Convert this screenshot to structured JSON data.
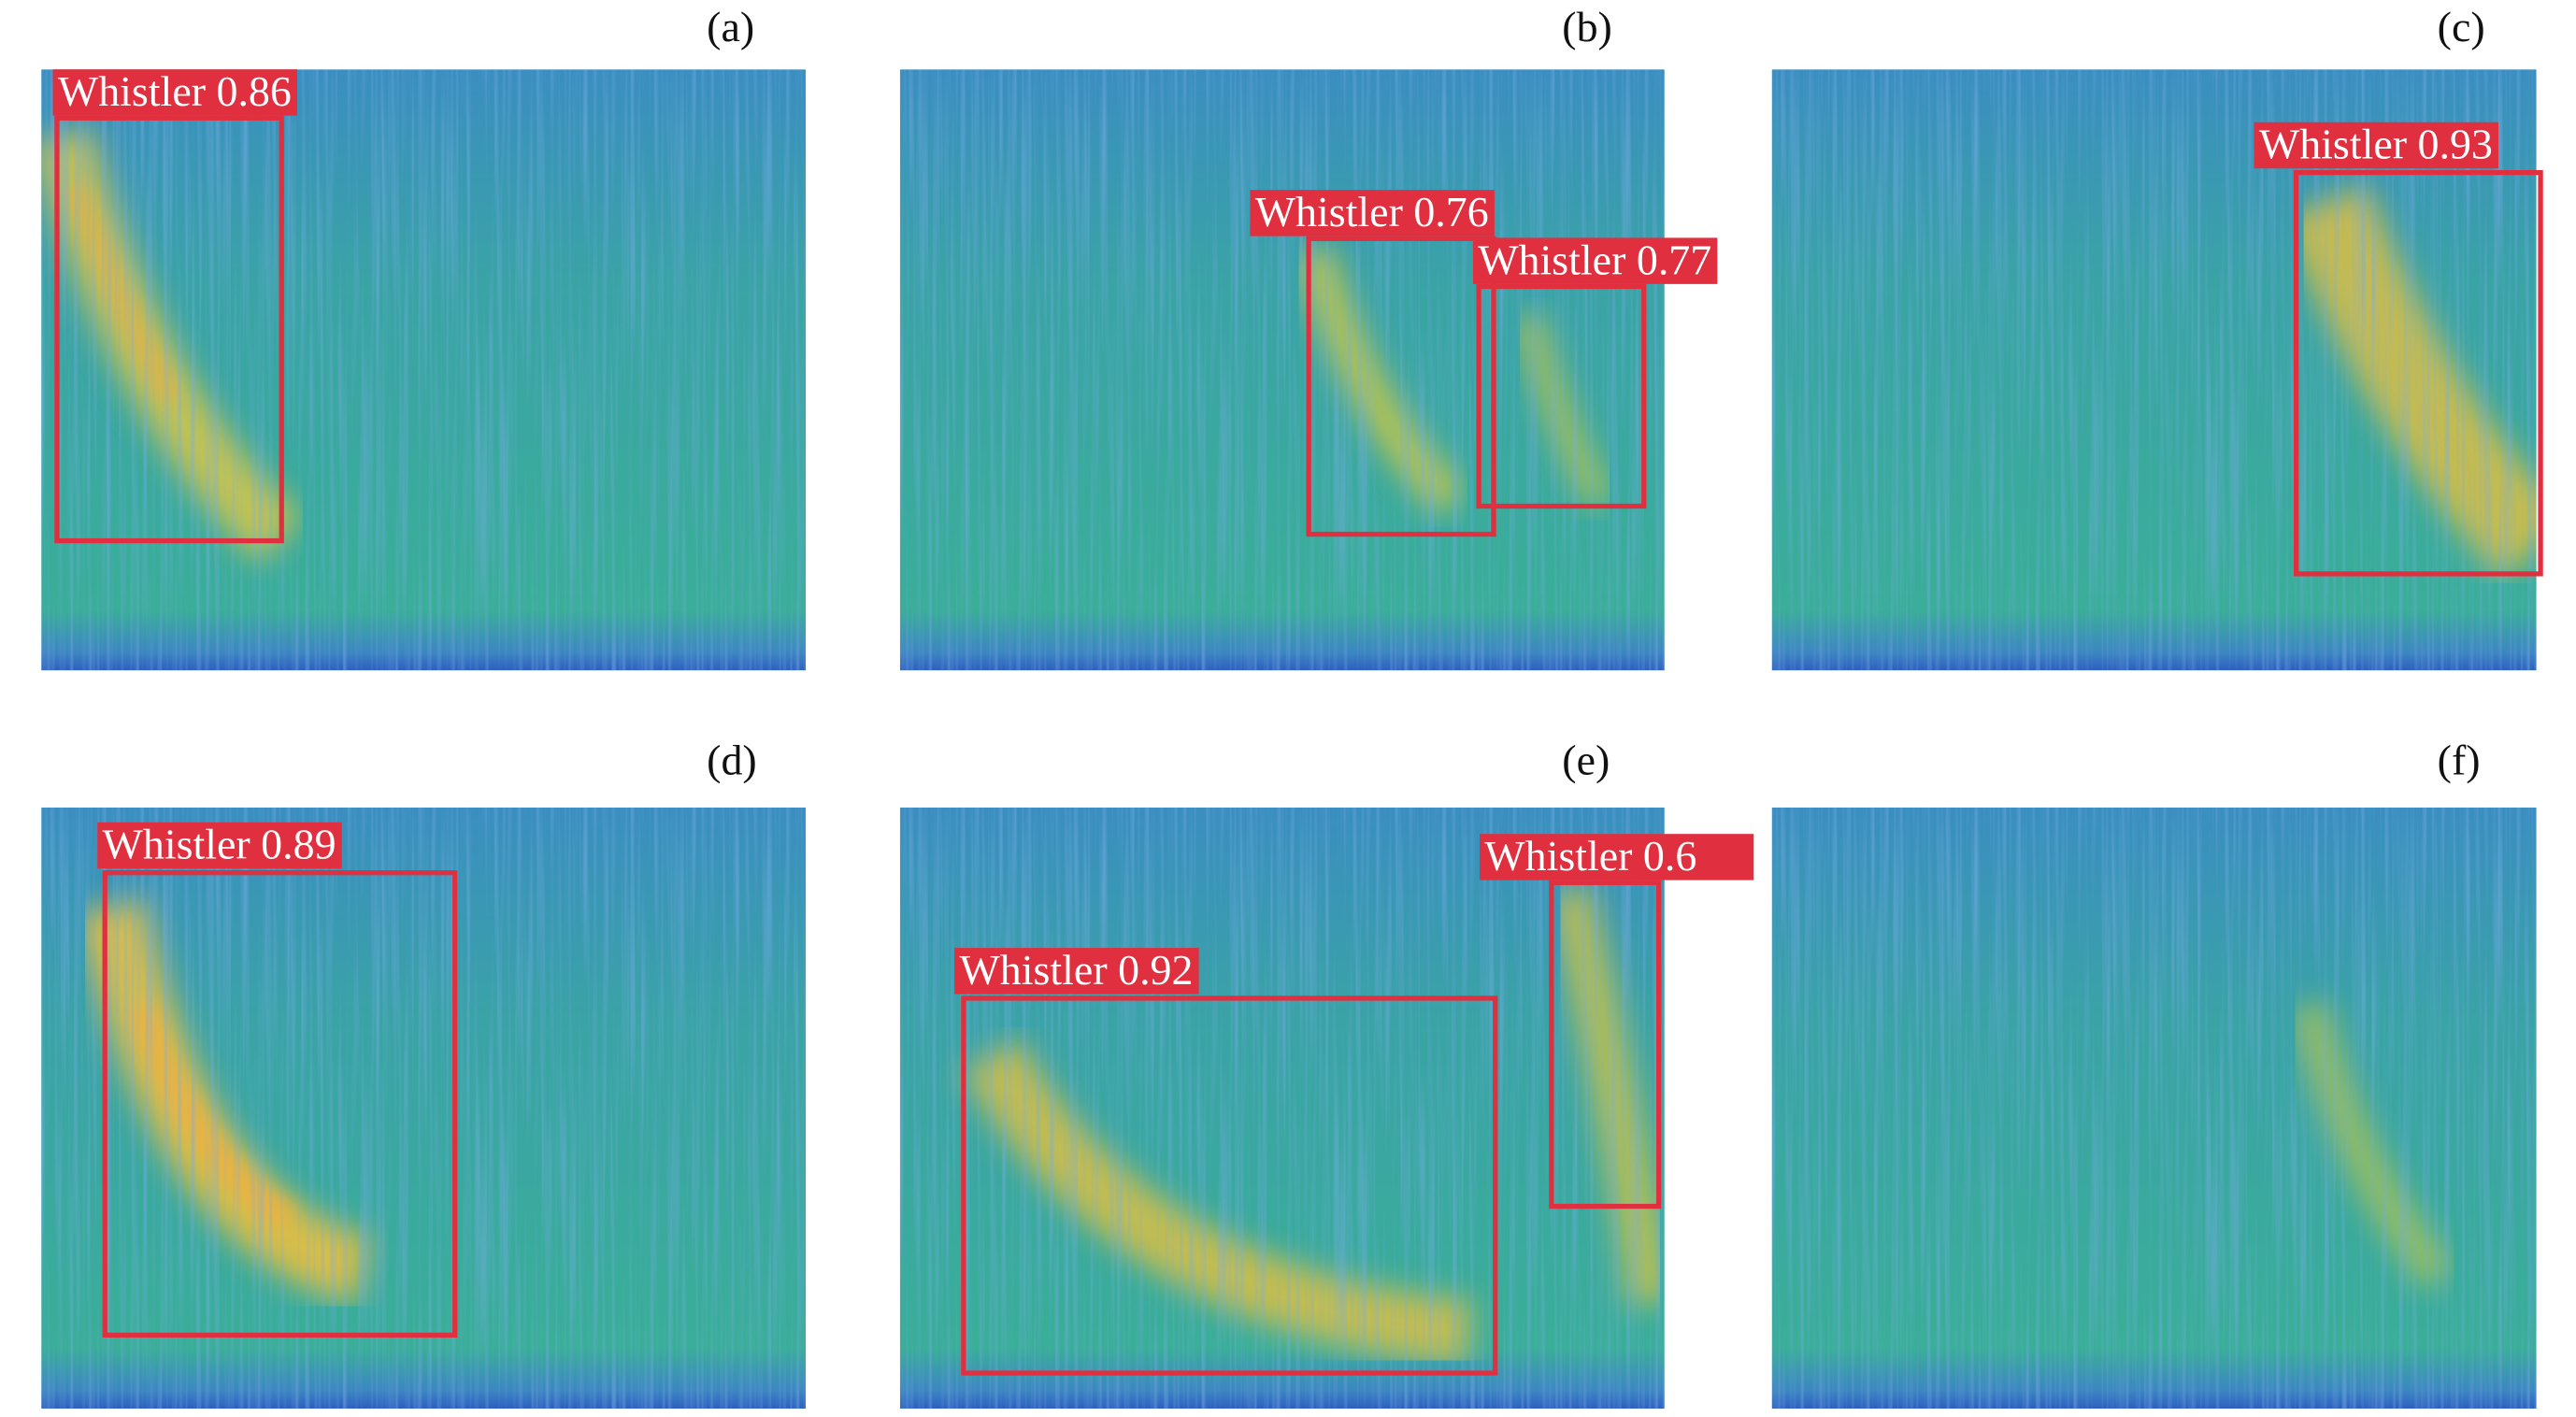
{
  "panels": [
    {
      "label": "(a)",
      "detections": [
        {
          "text": "Whistler 0.86",
          "class": "Whistler",
          "confidence": 0.86
        }
      ]
    },
    {
      "label": "(b)",
      "detections": [
        {
          "text": "Whistler 0.76",
          "class": "Whistler",
          "confidence": 0.76
        },
        {
          "text": "Whistler 0.77",
          "class": "Whistler",
          "confidence": 0.77
        }
      ]
    },
    {
      "label": "(c)",
      "detections": [
        {
          "text": "Whistler 0.93",
          "class": "Whistler",
          "confidence": 0.93
        }
      ]
    },
    {
      "label": "(d)",
      "detections": [
        {
          "text": "Whistler 0.89",
          "class": "Whistler",
          "confidence": 0.89
        }
      ]
    },
    {
      "label": "(e)",
      "detections": [
        {
          "text": "Whistler 0.92",
          "class": "Whistler",
          "confidence": 0.92
        },
        {
          "text": "Whistler 0.6",
          "class": "Whistler",
          "confidence": 0.6
        }
      ]
    },
    {
      "label": "(f)",
      "detections": []
    }
  ],
  "colors": {
    "box": "#e0303f",
    "background_low": "#2f6fc4",
    "background_mid": "#3aa6a0",
    "signal": "#f2c03a"
  }
}
